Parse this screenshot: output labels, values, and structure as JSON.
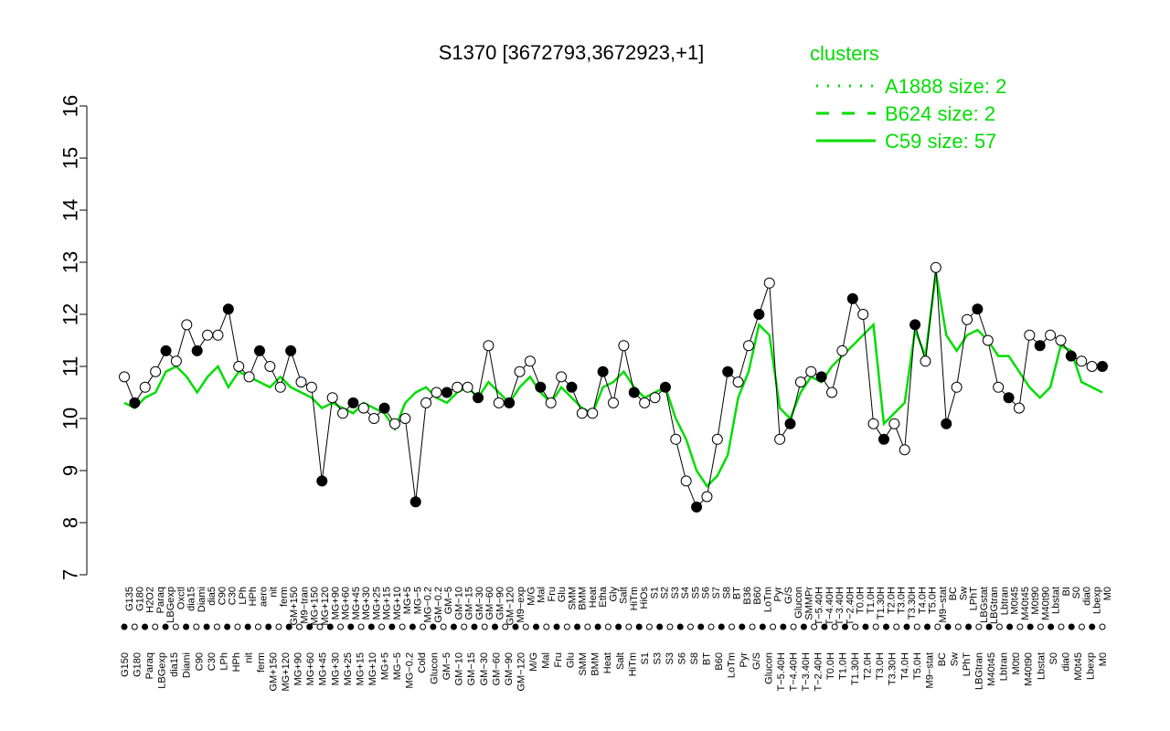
{
  "chart_data": {
    "type": "line",
    "title": "S1370 [3672793,3672923,+1]",
    "xlabel": "",
    "ylabel": "",
    "ylim": [
      7,
      16
    ],
    "yticks": [
      7,
      8,
      9,
      10,
      11,
      12,
      13,
      14,
      15,
      16
    ],
    "grid": false,
    "legend": {
      "placement": "top-right",
      "title": "clusters",
      "entries": [
        {
          "label": "A1888 size: 2",
          "style": "dotted"
        },
        {
          "label": "B624 size: 2",
          "style": "dashed"
        },
        {
          "label": "C59 size: 57",
          "style": "solid"
        }
      ]
    },
    "x_tick_labels_top": [
      "G135",
      "G180",
      "H2O2",
      "Paraq",
      "LBGexp",
      "Oxctl",
      "dia15",
      "Diami",
      "dia5",
      "C90",
      "C30",
      "LPh",
      "HPh",
      "aero",
      "nit",
      "ferm",
      "GM+150",
      "M9−tran",
      "MG+150",
      "MG+120",
      "MG+90",
      "MG+60",
      "MG+45",
      "MG+30",
      "MG+25",
      "MG+15",
      "MG+10",
      "MG+5",
      "MG−5",
      "MG−0.2",
      "GM−0.2",
      "GM−5",
      "GM−10",
      "GM−15",
      "GM−30",
      "GM−60",
      "GM−90",
      "GM−120",
      "M9−exp",
      "M/G",
      "Mal",
      "Fru",
      "Glu",
      "SMM",
      "BMM",
      "Heat",
      "Etha",
      "Gly",
      "Salt",
      "HiTm",
      "HiOs",
      "S1",
      "S2",
      "S3",
      "S4",
      "S5",
      "S6",
      "S7",
      "S8",
      "BT",
      "B36",
      "B60",
      "LoTm",
      "Pyr",
      "G/S",
      "Glucon",
      "SMMPr",
      "T−5.40H",
      "T−4.40H",
      "T−3.40H",
      "T−2.40H",
      "T0.0H",
      "T1.0H",
      "T1.30H",
      "T2.0H",
      "T3.0H",
      "T3.30H",
      "T4.0H",
      "T5.0H",
      "M9−stat",
      "BC",
      "Sw",
      "LPhT",
      "LBGstat",
      "LBGtran",
      "Lbtran",
      "M0t45",
      "M40t45",
      "M0t90",
      "M40t90",
      "Lbstat",
      "BI",
      "S0",
      "dia0",
      "Lbexp",
      "M0"
    ],
    "x_tick_labels_bottom": [
      "G150",
      "G180",
      "Paraq",
      "LBGexp",
      "dia15",
      "Diami",
      "C90",
      "C30",
      "LPh",
      "HPh",
      "nit",
      "ferm",
      "GM+150",
      "MG+120",
      "MG+90",
      "MG+60",
      "MG+45",
      "MG+30",
      "MG+25",
      "MG+15",
      "MG+10",
      "MG+5",
      "MG−5",
      "MG−0.2",
      "Cold",
      "Glucon",
      "GM−5",
      "GM−10",
      "GM−15",
      "GM−30",
      "GM−60",
      "GM−90",
      "GM−120",
      "M/G",
      "Mal",
      "Fru",
      "Glu",
      "SMM",
      "BMM",
      "Heat",
      "Salt",
      "HiTm",
      "S1",
      "S3",
      "S3",
      "S6",
      "S8",
      "BT",
      "B60",
      "LoTm",
      "Pyr",
      "G/S",
      "Glucon",
      "T−5.40H",
      "T−4.40H",
      "T−3.40H",
      "T−2.40H",
      "T0.0H",
      "T1.0H",
      "T1.30H",
      "T2.0H",
      "T3.0H",
      "T3.30H",
      "T4.0H",
      "T5.0H",
      "M9−stat",
      "BC",
      "Sw",
      "LPhT",
      "LBGtran",
      "M40t45",
      "Lbtran",
      "M0t0",
      "M40t90",
      "Lbstat",
      "S0",
      "dia0",
      "M0t45",
      "Lbexp",
      "M0"
    ],
    "series": [
      {
        "name": "C59 size: 57",
        "style": "solid",
        "color": "#00dd00",
        "values": [
          10.3,
          10.2,
          10.4,
          10.5,
          10.9,
          11.0,
          10.8,
          10.5,
          10.8,
          11.0,
          10.6,
          10.9,
          10.8,
          10.7,
          10.6,
          10.8,
          10.6,
          10.5,
          10.4,
          10.2,
          10.3,
          10.2,
          10.1,
          10.3,
          10.2,
          10.1,
          9.8,
          10.3,
          10.5,
          10.6,
          10.4,
          10.3,
          10.5,
          10.6,
          10.4,
          10.7,
          10.5,
          10.3,
          10.6,
          10.8,
          10.5,
          10.3,
          10.6,
          10.4,
          10.2,
          10.1,
          10.6,
          10.7,
          10.9,
          10.6,
          10.4,
          10.5,
          10.6,
          10.0,
          9.6,
          9.0,
          8.7,
          8.9,
          9.3,
          10.4,
          10.9,
          11.8,
          11.6,
          10.2,
          10.0,
          10.5,
          10.8,
          10.7,
          11.0,
          11.2,
          11.4,
          11.6,
          11.8,
          9.9,
          10.1,
          10.3,
          11.7,
          11.2,
          12.8,
          11.6,
          11.3,
          11.6,
          11.7,
          11.5,
          11.2,
          11.2,
          10.9,
          10.6,
          10.4,
          10.6,
          11.4,
          11.3,
          10.7,
          10.6,
          10.5
        ]
      },
      {
        "name": "sample expression",
        "style": "points",
        "color": "#000000",
        "values": [
          10.8,
          10.3,
          10.6,
          10.9,
          11.3,
          11.1,
          11.8,
          11.3,
          11.6,
          11.6,
          12.1,
          11.0,
          10.8,
          11.3,
          11.0,
          10.6,
          11.3,
          10.7,
          10.6,
          8.8,
          10.4,
          10.1,
          10.3,
          10.2,
          10.0,
          10.2,
          9.9,
          10.0,
          8.4,
          10.3,
          10.5,
          10.5,
          10.6,
          10.6,
          10.4,
          11.4,
          10.3,
          10.3,
          10.9,
          11.1,
          10.6,
          10.3,
          10.8,
          10.6,
          10.1,
          10.1,
          10.9,
          10.3,
          11.4,
          10.5,
          10.3,
          10.4,
          10.6,
          9.6,
          8.8,
          8.3,
          8.5,
          9.6,
          10.9,
          10.7,
          11.4,
          12.0,
          12.6,
          9.6,
          9.9,
          10.7,
          10.9,
          10.8,
          10.5,
          11.3,
          12.3,
          12.0,
          9.9,
          9.6,
          9.9,
          9.4,
          11.8,
          11.1,
          12.9,
          9.9,
          10.6,
          11.9,
          12.1,
          11.5,
          10.6,
          10.4,
          10.2,
          11.6,
          11.4,
          11.6,
          11.5,
          11.2,
          11.1,
          11.0,
          11.0
        ]
      }
    ]
  }
}
